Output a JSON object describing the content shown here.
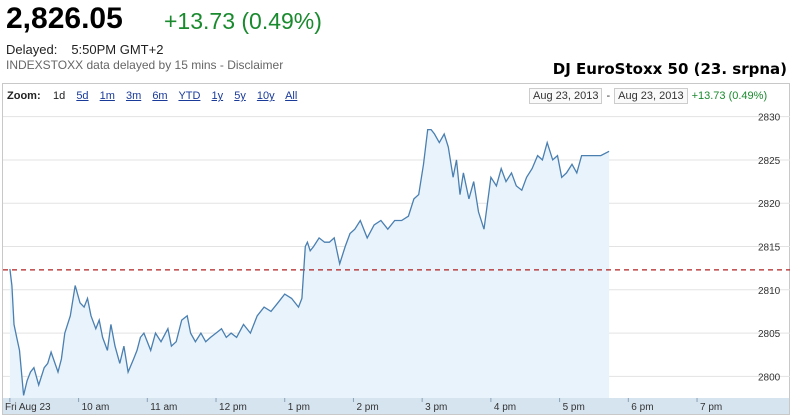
{
  "header": {
    "price": "2,826.05",
    "change": "+13.73 (0.49%)",
    "delayed_label": "Delayed:",
    "delayed_time": "5:50PM GMT+2",
    "source": "INDEXSTOXX data delayed by 15 mins - Disclaimer",
    "caption": "DJ EuroStoxx 50 (23. srpna)"
  },
  "zoom": {
    "label": "Zoom:",
    "items": [
      "1d",
      "5d",
      "1m",
      "3m",
      "6m",
      "YTD",
      "1y",
      "5y",
      "10y",
      "All"
    ],
    "active": "1d"
  },
  "range": {
    "start": "Aug 23, 2013",
    "separator": "-",
    "end": "Aug 23, 2013",
    "change": "+13.73 (0.49%)"
  },
  "colors": {
    "line": "#4a7fb0",
    "fill": "#e8f3fc",
    "previous_close": "#b02020",
    "up": "#1a8a2e",
    "axis_band": "#d6e4f0"
  },
  "chart_data": {
    "type": "area",
    "title": "",
    "xlabel": "",
    "ylabel": "",
    "x_tick_labels": [
      "Fri Aug 23",
      "10 am",
      "11 am",
      "12 pm",
      "1 pm",
      "2 pm",
      "3 pm",
      "4 pm",
      "5 pm",
      "6 pm",
      "7 pm"
    ],
    "x_tick_hours": [
      9.0,
      10.0,
      11.0,
      12.0,
      13.0,
      14.0,
      15.0,
      16.0,
      17.0,
      18.0,
      19.0
    ],
    "y_ticks": [
      2800,
      2805,
      2810,
      2815,
      2820,
      2825,
      2830
    ],
    "xlim": [
      8.9,
      19.8
    ],
    "ylim": [
      2797.5,
      2831
    ],
    "previous_close": 2812.3,
    "grid": true,
    "series": [
      {
        "x": [
          9.0,
          9.03,
          9.06,
          9.1,
          9.14,
          9.2,
          9.25,
          9.3,
          9.35,
          9.42,
          9.5,
          9.55,
          9.6,
          9.7,
          9.75,
          9.8,
          9.88,
          9.95,
          10.02,
          10.08,
          10.13,
          10.18,
          10.25,
          10.3,
          10.35,
          10.42,
          10.47,
          10.53,
          10.6,
          10.66,
          10.72,
          10.8,
          10.85,
          10.9,
          10.95,
          11.0,
          11.05,
          11.12,
          11.2,
          11.3,
          11.35,
          11.42,
          11.5,
          11.58,
          11.63,
          11.7,
          11.78,
          11.85,
          11.92,
          12.0,
          12.08,
          12.15,
          12.22,
          12.3,
          12.4,
          12.5,
          12.6,
          12.7,
          12.8,
          12.9,
          13.0,
          13.1,
          13.2,
          13.25,
          13.3,
          13.33,
          13.37,
          13.42,
          13.5,
          13.58,
          13.65,
          13.72,
          13.8,
          13.88,
          13.95,
          14.02,
          14.1,
          14.2,
          14.3,
          14.4,
          14.5,
          14.6,
          14.7,
          14.8,
          14.88,
          14.95,
          15.02,
          15.08,
          15.13,
          15.18,
          15.25,
          15.32,
          15.38,
          15.45,
          15.5,
          15.55,
          15.6,
          15.68,
          15.75,
          15.82,
          15.9,
          16.0,
          16.08,
          16.15,
          16.22,
          16.3,
          16.37,
          16.45,
          16.52,
          16.6,
          16.68,
          16.75,
          16.82,
          16.9,
          16.97,
          17.03,
          17.1,
          17.18,
          17.25,
          17.32,
          17.4,
          17.5,
          17.6,
          17.72
        ],
        "values": [
          2812.4,
          2810.5,
          2806.0,
          2804.5,
          2803.0,
          2797.8,
          2799.5,
          2800.5,
          2801.0,
          2799.0,
          2801.0,
          2801.5,
          2802.8,
          2800.5,
          2802.0,
          2805.0,
          2807.0,
          2810.5,
          2808.5,
          2808.0,
          2809.0,
          2807.0,
          2805.5,
          2806.5,
          2804.5,
          2803.0,
          2806.0,
          2803.5,
          2801.5,
          2803.5,
          2800.5,
          2802.0,
          2803.0,
          2804.5,
          2805.0,
          2804.0,
          2803.0,
          2805.0,
          2804.0,
          2805.5,
          2803.5,
          2804.0,
          2806.5,
          2807.0,
          2805.0,
          2804.0,
          2805.0,
          2804.0,
          2804.5,
          2805.0,
          2805.5,
          2804.5,
          2805.0,
          2804.5,
          2806.0,
          2805.0,
          2807.0,
          2808.0,
          2807.5,
          2808.5,
          2809.5,
          2809.0,
          2808.0,
          2809.0,
          2815.0,
          2815.5,
          2814.5,
          2815.0,
          2816.0,
          2815.5,
          2815.5,
          2816.0,
          2813.0,
          2815.0,
          2816.5,
          2817.0,
          2818.0,
          2816.0,
          2817.5,
          2818.0,
          2817.0,
          2818.0,
          2818.0,
          2818.5,
          2820.5,
          2821.0,
          2824.5,
          2828.5,
          2828.5,
          2828.0,
          2827.0,
          2828.0,
          2826.5,
          2823.0,
          2825.0,
          2821.0,
          2823.5,
          2820.5,
          2822.5,
          2819.0,
          2817.0,
          2823.0,
          2822.0,
          2824.0,
          2822.5,
          2823.5,
          2822.0,
          2821.5,
          2823.0,
          2824.0,
          2825.5,
          2825.0,
          2827.0,
          2825.0,
          2825.5,
          2823.0,
          2823.5,
          2824.5,
          2823.5,
          2825.5,
          2825.5,
          2825.5,
          2825.5,
          2826.0
        ]
      }
    ]
  }
}
